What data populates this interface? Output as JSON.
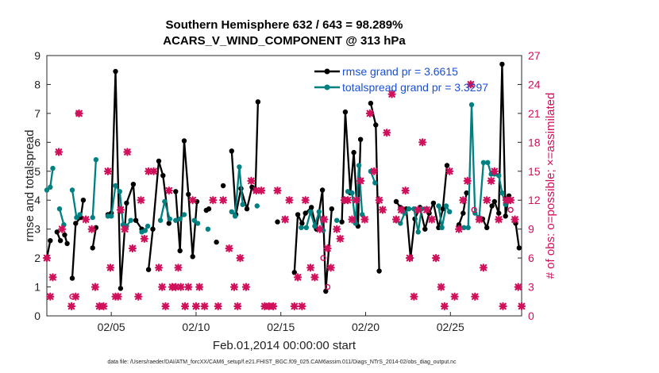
{
  "chart_data": {
    "type": "line",
    "title": "Southern Hemisphere 632 / 643 = 98.289%",
    "subtitle": "ACARS_V_WIND_COMPONENT @ 313 hPa",
    "xlabel": "Feb.01,2014 00:00:00 start",
    "ylabel": "rmse and totalspread",
    "y2label": "# of obs: o=possible; ×=assimilated",
    "xlim": [
      0.2,
      28.2
    ],
    "ylim": [
      0,
      9
    ],
    "y2lim": [
      0,
      27
    ],
    "x_ticks": [
      {
        "x": 4,
        "label": "02/05"
      },
      {
        "x": 9,
        "label": "02/10"
      },
      {
        "x": 14,
        "label": "02/15"
      },
      {
        "x": 19,
        "label": "02/20"
      },
      {
        "x": 24,
        "label": "02/25"
      }
    ],
    "y_ticks": [
      "0",
      "1",
      "2",
      "3",
      "4",
      "5",
      "6",
      "7",
      "8",
      "9"
    ],
    "y2_ticks": [
      "0",
      "3",
      "6",
      "9",
      "12",
      "15",
      "18",
      "21",
      "24",
      "27"
    ],
    "footnote": "data file: /Users/raeder/DAI/ATM_forcXX/CAM6_setup/f.e21.FHIST_BGC.f09_025.CAM6assim.011/Diags_NTrS_2014-02/obs_diag_output.nc",
    "colors": {
      "rmse": "#000000",
      "spread": "#008080",
      "obs": "#d0105a",
      "legend_text": "#1a4fd6"
    },
    "series": [
      {
        "name": "rmse grand pr = 3.6615",
        "color": "#000000",
        "segments": [
          [
            [
              0.2,
              2.0
            ],
            [
              0.4,
              2.6
            ]
          ],
          [
            [
              0.8,
              2.9
            ],
            [
              1.0,
              2.6
            ]
          ],
          [
            [
              1.25,
              2.8
            ],
            [
              1.4,
              2.5
            ]
          ],
          [
            [
              1.7,
              1.3
            ],
            [
              1.9,
              3.2
            ],
            [
              2.2,
              3.4
            ],
            [
              2.35,
              4.0
            ]
          ],
          [
            [
              2.9,
              2.35
            ],
            [
              3.1,
              3.05
            ]
          ],
          [
            [
              3.8,
              3.5
            ],
            [
              4.0,
              3.55
            ],
            [
              4.25,
              8.45
            ],
            [
              4.55,
              0.95
            ],
            [
              4.9,
              3.9
            ],
            [
              5.3,
              4.55
            ],
            [
              5.45,
              3.3
            ],
            [
              5.8,
              3.0
            ]
          ],
          [
            [
              6.2,
              1.6
            ],
            [
              6.45,
              3.0
            ],
            [
              6.8,
              5.35
            ],
            [
              7.05,
              4.85
            ],
            [
              7.4,
              3.2
            ]
          ],
          [
            [
              7.8,
              4.3
            ],
            [
              8.05,
              2.25
            ],
            [
              8.3,
              6.05
            ],
            [
              8.55,
              4.2
            ],
            [
              8.8,
              2.05
            ],
            [
              9.05,
              3.95
            ]
          ],
          [
            [
              9.6,
              3.65
            ],
            [
              9.75,
              3.7
            ]
          ],
          [
            [
              10.2,
              2.55
            ]
          ],
          [
            [
              10.6,
              4.5
            ]
          ],
          [
            [
              11.1,
              5.7
            ],
            [
              11.35,
              3.5
            ],
            [
              11.65,
              4.4
            ],
            [
              12.0,
              3.7
            ],
            [
              12.3,
              4.45
            ],
            [
              12.5,
              4.35
            ],
            [
              12.65,
              7.4
            ]
          ],
          [
            [
              13.8,
              3.25
            ]
          ],
          [
            [
              14.8,
              1.5
            ],
            [
              15.0,
              3.5
            ],
            [
              15.25,
              3.2
            ],
            [
              15.45,
              3.55
            ],
            [
              15.8,
              3.75
            ],
            [
              16.1,
              3.0
            ],
            [
              16.45,
              4.35
            ],
            [
              16.65,
              0.85
            ],
            [
              17.0,
              3.7
            ]
          ],
          [
            [
              17.6,
              3.25
            ],
            [
              17.8,
              7.05
            ],
            [
              18.1,
              4.25
            ],
            [
              18.3,
              5.65
            ],
            [
              18.55,
              3.1
            ],
            [
              18.7,
              6.1
            ]
          ],
          [
            [
              19.3,
              7.35
            ],
            [
              19.6,
              6.6
            ],
            [
              19.8,
              1.55
            ]
          ],
          [
            [
              20.8,
              3.95
            ],
            [
              21.05,
              3.75
            ],
            [
              21.4,
              3.7
            ],
            [
              21.65,
              2.0
            ],
            [
              21.9,
              3.35
            ],
            [
              22.2,
              3.75
            ],
            [
              22.5,
              3.0
            ],
            [
              22.75,
              3.55
            ],
            [
              23.0,
              3.9
            ],
            [
              23.3,
              3.05
            ],
            [
              23.55,
              3.7
            ],
            [
              23.8,
              5.2
            ]
          ],
          [
            [
              24.5,
              3.15
            ],
            [
              24.75,
              3.55
            ],
            [
              24.95,
              4.25
            ]
          ],
          [
            [
              25.9,
              3.35
            ],
            [
              26.15,
              3.05
            ],
            [
              26.45,
              3.8
            ],
            [
              26.6,
              3.95
            ],
            [
              26.85,
              3.55
            ],
            [
              27.05,
              8.7
            ],
            [
              27.25,
              3.45
            ],
            [
              27.45,
              4.15
            ]
          ],
          [
            [
              27.85,
              3.2
            ],
            [
              28.05,
              2.35
            ]
          ]
        ]
      },
      {
        "name": "totalspread grand pr = 3.3297",
        "color": "#008080",
        "segments": [
          [
            [
              0.2,
              4.35
            ],
            [
              0.4,
              4.45
            ],
            [
              0.55,
              5.1
            ]
          ],
          [
            [
              0.95,
              3.7
            ],
            [
              1.2,
              3.15
            ]
          ],
          [
            [
              1.7,
              4.35
            ],
            [
              1.95,
              3.4
            ],
            [
              2.15,
              3.5
            ]
          ],
          [
            [
              2.9,
              3.4
            ],
            [
              3.1,
              5.4
            ]
          ],
          [
            [
              3.8,
              3.45
            ],
            [
              4.0,
              3.45
            ],
            [
              4.25,
              4.5
            ],
            [
              4.5,
              4.3
            ],
            [
              4.7,
              3.15
            ],
            [
              4.9,
              3.1
            ],
            [
              5.15,
              3.3
            ]
          ],
          [
            [
              5.8,
              2.9
            ],
            [
              6.0,
              2.95
            ],
            [
              6.15,
              3.1
            ]
          ],
          [
            [
              6.9,
              3.3
            ],
            [
              7.15,
              3.95
            ],
            [
              7.45,
              3.35
            ]
          ],
          [
            [
              7.8,
              3.3
            ],
            [
              8.05,
              3.35
            ],
            [
              8.3,
              3.5
            ]
          ],
          [
            [
              8.9,
              3.3
            ],
            [
              9.1,
              3.2
            ]
          ],
          [
            [
              9.7,
              3.0
            ]
          ],
          [
            [
              11.1,
              3.6
            ],
            [
              11.3,
              3.45
            ],
            [
              11.55,
              5.15
            ],
            [
              11.75,
              3.85
            ]
          ],
          [
            [
              12.6,
              3.8
            ]
          ],
          [
            [
              15.2,
              3.05
            ],
            [
              15.5,
              3.05
            ],
            [
              15.75,
              3.6
            ],
            [
              16.0,
              3.1
            ],
            [
              16.25,
              3.6
            ],
            [
              16.5,
              2.95
            ]
          ],
          [
            [
              17.3,
              3.3
            ]
          ],
          [
            [
              17.95,
              4.3
            ],
            [
              18.2,
              4.25
            ],
            [
              18.4,
              3.2
            ],
            [
              18.6,
              5.2
            ],
            [
              18.8,
              3.5
            ]
          ],
          [
            [
              19.3,
              5.0
            ],
            [
              19.55,
              4.6
            ]
          ],
          [
            [
              20.8,
              3.3
            ],
            [
              21.05,
              3.2
            ],
            [
              21.3,
              3.55
            ],
            [
              21.55,
              3.7
            ],
            [
              21.85,
              3.7
            ],
            [
              22.1,
              2.9
            ],
            [
              22.3,
              3.7
            ],
            [
              22.6,
              3.7
            ]
          ],
          [
            [
              23.3,
              3.8
            ],
            [
              23.5,
              3.05
            ],
            [
              23.75,
              3.8
            ],
            [
              23.95,
              3.6
            ]
          ],
          [
            [
              24.8,
              3.05
            ],
            [
              25.05,
              3.05
            ],
            [
              25.25,
              7.3
            ],
            [
              25.45,
              3.55
            ],
            [
              25.7,
              3.4
            ],
            [
              25.95,
              5.3
            ],
            [
              26.2,
              5.3
            ],
            [
              26.4,
              4.9
            ],
            [
              26.6,
              4.9
            ],
            [
              26.85,
              4.85
            ],
            [
              27.05,
              4.25
            ],
            [
              27.25,
              3.85
            ]
          ]
        ]
      }
    ],
    "obs_assimilated": [
      [
        0.2,
        6
      ],
      [
        0.4,
        2
      ],
      [
        0.55,
        4
      ],
      [
        0.9,
        17
      ],
      [
        1.1,
        9
      ],
      [
        1.65,
        1
      ],
      [
        1.9,
        2
      ],
      [
        2.1,
        21
      ],
      [
        2.5,
        10
      ],
      [
        2.85,
        9
      ],
      [
        3.05,
        3
      ],
      [
        3.3,
        1
      ],
      [
        3.55,
        1
      ],
      [
        3.8,
        15
      ],
      [
        3.95,
        5
      ],
      [
        4.25,
        2
      ],
      [
        4.4,
        2
      ],
      [
        4.55,
        11
      ],
      [
        4.8,
        9
      ],
      [
        4.95,
        17
      ],
      [
        5.25,
        7
      ],
      [
        5.6,
        2
      ],
      [
        5.75,
        12
      ],
      [
        5.95,
        8
      ],
      [
        6.2,
        15
      ],
      [
        6.5,
        15
      ],
      [
        6.8,
        5
      ],
      [
        7.0,
        3
      ],
      [
        7.2,
        1
      ],
      [
        7.4,
        13
      ],
      [
        7.6,
        3
      ],
      [
        7.8,
        3
      ],
      [
        7.95,
        5
      ],
      [
        8.1,
        3
      ],
      [
        8.35,
        1
      ],
      [
        8.55,
        3
      ],
      [
        8.8,
        12
      ],
      [
        9.0,
        1
      ],
      [
        9.2,
        3
      ],
      [
        9.5,
        1
      ],
      [
        10.0,
        12
      ],
      [
        10.3,
        1
      ],
      [
        10.6,
        12
      ],
      [
        10.95,
        7
      ],
      [
        11.25,
        3
      ],
      [
        11.45,
        1
      ],
      [
        11.6,
        6
      ],
      [
        11.95,
        3
      ],
      [
        12.25,
        14
      ],
      [
        12.55,
        13
      ],
      [
        12.85,
        13
      ],
      [
        13.05,
        1
      ],
      [
        13.3,
        1
      ],
      [
        13.55,
        1
      ],
      [
        13.8,
        13
      ],
      [
        14.25,
        10
      ],
      [
        14.5,
        12
      ],
      [
        14.8,
        1
      ],
      [
        15.0,
        4
      ],
      [
        15.25,
        1
      ],
      [
        15.45,
        12
      ],
      [
        15.75,
        5
      ],
      [
        16.0,
        4
      ],
      [
        16.3,
        9
      ],
      [
        16.55,
        10
      ],
      [
        16.75,
        7
      ],
      [
        16.95,
        5
      ],
      [
        17.3,
        9
      ],
      [
        17.5,
        8
      ],
      [
        17.75,
        12
      ],
      [
        17.95,
        12
      ],
      [
        18.2,
        10
      ],
      [
        18.45,
        12
      ],
      [
        18.7,
        14
      ],
      [
        18.95,
        10
      ],
      [
        19.25,
        21
      ],
      [
        19.5,
        15
      ],
      [
        19.8,
        12
      ],
      [
        20.0,
        11
      ],
      [
        20.25,
        19
      ],
      [
        20.55,
        23
      ],
      [
        20.8,
        10
      ],
      [
        21.1,
        11
      ],
      [
        21.35,
        13
      ],
      [
        21.6,
        6
      ],
      [
        21.85,
        2
      ],
      [
        22.1,
        11
      ],
      [
        22.35,
        18
      ],
      [
        22.6,
        11
      ],
      [
        22.9,
        10
      ],
      [
        23.15,
        6
      ],
      [
        23.45,
        3
      ],
      [
        23.65,
        1
      ],
      [
        23.95,
        15
      ],
      [
        24.25,
        2
      ],
      [
        24.5,
        9
      ],
      [
        24.75,
        12
      ],
      [
        25.0,
        14
      ],
      [
        25.2,
        24
      ],
      [
        25.45,
        2
      ],
      [
        25.7,
        10
      ],
      [
        25.95,
        5
      ],
      [
        26.15,
        12
      ],
      [
        26.4,
        14
      ],
      [
        26.6,
        15
      ],
      [
        26.85,
        10
      ],
      [
        27.1,
        1
      ],
      [
        27.3,
        12
      ],
      [
        27.55,
        12
      ],
      [
        27.8,
        10
      ],
      [
        28.0,
        3
      ],
      [
        28.2,
        1
      ]
    ],
    "obs_possible": [
      [
        1.7,
        2
      ],
      [
        2.05,
        21
      ],
      [
        16.5,
        6
      ],
      [
        16.75,
        3
      ],
      [
        25.4,
        11
      ],
      [
        27.55,
        11
      ]
    ]
  }
}
